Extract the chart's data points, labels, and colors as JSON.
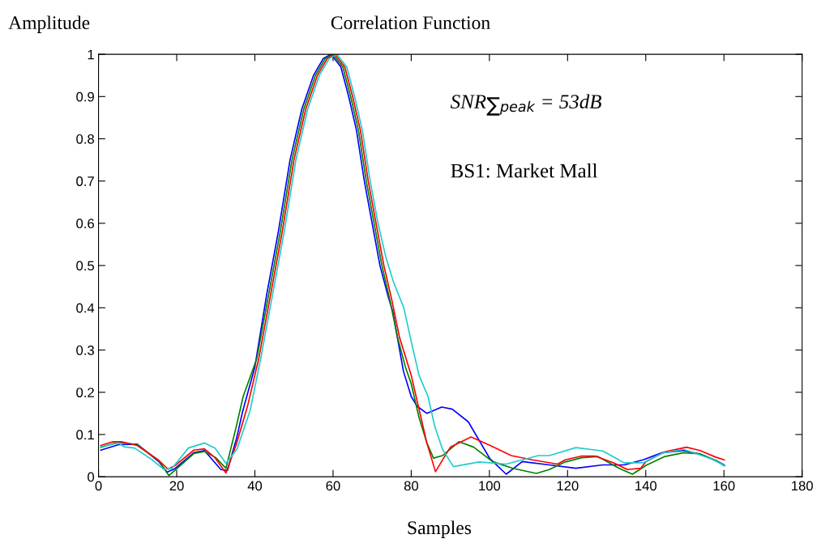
{
  "chart_data": {
    "type": "line",
    "title": "Correlation Function",
    "xlabel": "Samples",
    "ylabel": "Amplitude",
    "xlim": [
      0,
      180
    ],
    "xticks": [
      0,
      20,
      40,
      60,
      80,
      100,
      120,
      140,
      160,
      180
    ],
    "ylim": [
      0,
      1
    ],
    "yticks": [
      0,
      0.1,
      0.2,
      0.3,
      0.4,
      0.5,
      0.6,
      0.7,
      0.8,
      0.9,
      1
    ],
    "grid": false,
    "legend": false,
    "marker": "none",
    "line_style": "solid",
    "annotations": [
      "SNR$_{∑peak}$ = 53dB",
      "BS1: Market Mall"
    ],
    "series": [
      {
        "color": "#0000ff",
        "x": [
          0.6,
          5.1,
          9.9,
          15.4,
          17.5,
          19.5,
          24.4,
          27.1,
          31.3,
          33,
          35.4,
          36.8,
          40,
          43,
          46,
          49,
          52,
          55,
          57.5,
          59.5,
          62,
          64,
          66,
          68,
          70,
          72,
          74,
          75.3,
          78,
          80,
          81.5,
          84,
          87.8,
          90.5,
          94.6,
          100.1,
          104.3,
          108.4,
          115.3,
          122.1,
          129,
          134.5,
          139.3,
          144.2,
          149.7,
          153.9,
          158,
          160.1
        ],
        "values": [
          0.063,
          0.076,
          0.077,
          0.036,
          0.011,
          0.019,
          0.057,
          0.062,
          0.017,
          0.015,
          0.094,
          0.152,
          0.26,
          0.43,
          0.58,
          0.75,
          0.87,
          0.95,
          0.99,
          1.0,
          0.97,
          0.9,
          0.82,
          0.7,
          0.6,
          0.5,
          0.43,
          0.39,
          0.25,
          0.19,
          0.167,
          0.15,
          0.165,
          0.16,
          0.13,
          0.043,
          0.006,
          0.036,
          0.028,
          0.02,
          0.028,
          0.028,
          0.04,
          0.057,
          0.062,
          0.054,
          0.038,
          0.028
        ]
      },
      {
        "color": "#008000",
        "x": [
          0.6,
          5.1,
          9.9,
          15.4,
          18,
          19.5,
          24.4,
          27.1,
          30,
          32.6,
          35.4,
          37,
          40.5,
          43.5,
          46.5,
          49.5,
          52.5,
          55.5,
          58,
          60,
          62.5,
          64.5,
          66.5,
          68.5,
          70.5,
          72.5,
          74.5,
          76.5,
          78.5,
          80,
          82,
          84,
          85.7,
          88,
          92.2,
          96,
          100.8,
          106,
          112,
          115.3,
          119.4,
          123.6,
          127.7,
          133.2,
          136.6,
          140.1,
          144.9,
          149.7,
          153.9,
          158,
          160.1
        ],
        "values": [
          0.07,
          0.082,
          0.076,
          0.038,
          0.003,
          0.015,
          0.055,
          0.06,
          0.045,
          0.02,
          0.125,
          0.19,
          0.28,
          0.43,
          0.58,
          0.75,
          0.87,
          0.95,
          0.99,
          1.0,
          0.97,
          0.9,
          0.82,
          0.7,
          0.6,
          0.5,
          0.42,
          0.33,
          0.26,
          0.22,
          0.14,
          0.08,
          0.044,
          0.05,
          0.083,
          0.07,
          0.036,
          0.02,
          0.008,
          0.017,
          0.035,
          0.045,
          0.048,
          0.02,
          0.006,
          0.027,
          0.048,
          0.057,
          0.054,
          0.038,
          0.026
        ]
      },
      {
        "color": "#ff0000",
        "x": [
          0.6,
          3.7,
          5.8,
          9.9,
          15.4,
          17.8,
          19.5,
          24.4,
          27.1,
          29.8,
          32.6,
          35.4,
          38.2,
          41,
          44,
          47,
          50,
          53,
          56,
          58.5,
          60.5,
          63,
          65,
          67,
          69,
          71,
          73,
          75,
          77,
          79,
          80,
          82,
          84,
          86.2,
          90,
          95.3,
          100,
          105.6,
          111,
          117.4,
          119.4,
          123.6,
          127,
          131.8,
          135.3,
          138.7,
          140.1,
          144.9,
          150.4,
          153.9,
          158,
          160.1
        ],
        "values": [
          0.074,
          0.083,
          0.083,
          0.074,
          0.039,
          0.018,
          0.026,
          0.063,
          0.066,
          0.045,
          0.009,
          0.081,
          0.17,
          0.28,
          0.43,
          0.58,
          0.75,
          0.87,
          0.95,
          0.99,
          1.0,
          0.97,
          0.9,
          0.82,
          0.7,
          0.6,
          0.5,
          0.42,
          0.33,
          0.27,
          0.24,
          0.16,
          0.08,
          0.012,
          0.07,
          0.094,
          0.075,
          0.05,
          0.04,
          0.03,
          0.04,
          0.049,
          0.049,
          0.033,
          0.017,
          0.02,
          0.036,
          0.059,
          0.07,
          0.062,
          0.046,
          0.04
        ]
      },
      {
        "color": "#22cccc",
        "x": [
          0.6,
          5.1,
          6.5,
          9.2,
          13.3,
          16.8,
          18.8,
          23,
          27.1,
          29.8,
          32.6,
          35.4,
          38.8,
          41.5,
          44.5,
          47.5,
          50.5,
          53.5,
          56.5,
          59,
          61,
          63.5,
          65.5,
          67.5,
          69.5,
          71.5,
          73.5,
          75.5,
          78.1,
          80,
          82,
          84.3,
          86,
          88,
          90.8,
          97.3,
          104.3,
          112.5,
          115.3,
          122.1,
          129,
          134.5,
          139.3,
          144.2,
          149.7,
          156.6,
          160.1
        ],
        "values": [
          0.071,
          0.08,
          0.071,
          0.068,
          0.043,
          0.017,
          0.02,
          0.068,
          0.08,
          0.068,
          0.032,
          0.065,
          0.157,
          0.28,
          0.43,
          0.58,
          0.75,
          0.87,
          0.95,
          0.99,
          1.0,
          0.97,
          0.9,
          0.82,
          0.7,
          0.6,
          0.52,
          0.46,
          0.4,
          0.32,
          0.24,
          0.19,
          0.12,
          0.065,
          0.024,
          0.035,
          0.03,
          0.05,
          0.05,
          0.069,
          0.061,
          0.033,
          0.033,
          0.056,
          0.065,
          0.043,
          0.027
        ]
      }
    ]
  }
}
